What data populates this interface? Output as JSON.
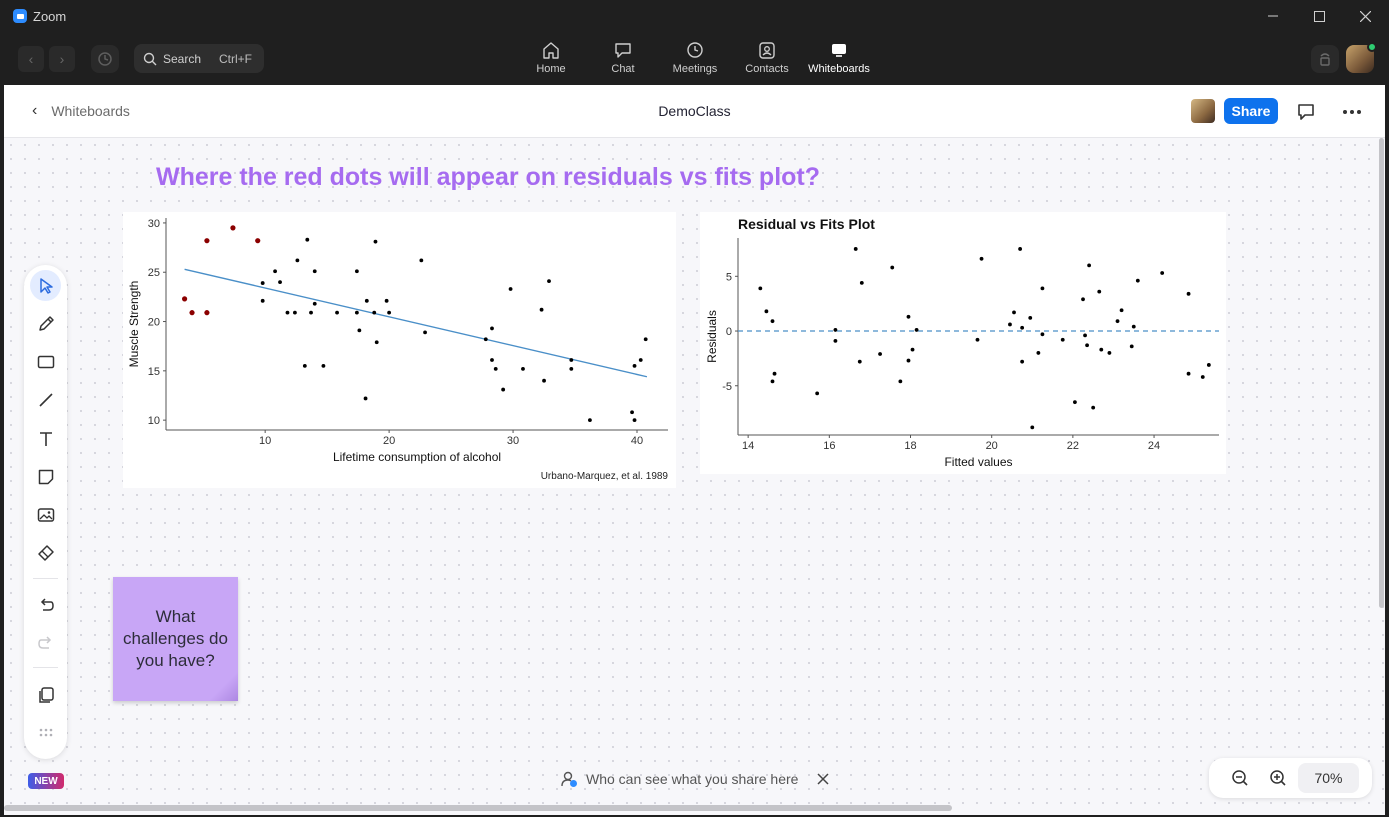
{
  "window": {
    "title": "Zoom"
  },
  "nav": {
    "search_placeholder": "Search",
    "search_shortcut": "Ctrl+F",
    "tabs": [
      {
        "label": "Home",
        "icon": "home-icon"
      },
      {
        "label": "Chat",
        "icon": "chat-icon"
      },
      {
        "label": "Meetings",
        "icon": "clock-icon"
      },
      {
        "label": "Contacts",
        "icon": "contacts-icon"
      },
      {
        "label": "Whiteboards",
        "icon": "whiteboard-icon",
        "active": true
      }
    ]
  },
  "header": {
    "back_label": "Whiteboards",
    "board_title": "DemoClass",
    "share_label": "Share"
  },
  "canvas": {
    "headline": "Where the red dots will appear on residuals vs fits plot?",
    "sticky_note": "What challenges do you have?",
    "sticky_color": "#c8a6f6",
    "headline_color": "#a66bf0"
  },
  "toolbar": {
    "tools": [
      "select-icon",
      "pen-icon",
      "rectangle-icon",
      "line-icon",
      "text-icon",
      "sticky-note-icon",
      "image-icon",
      "eraser-icon",
      "undo-icon",
      "redo-icon",
      "templates-icon",
      "more-icon"
    ],
    "new_badge": "NEW"
  },
  "footer": {
    "visibility_tip": "Who can see what you share here",
    "zoom_level": "70%"
  },
  "chart_data": [
    {
      "type": "scatter",
      "title": "",
      "xlabel": "Lifetime consumption of alcohol",
      "ylabel": "Muscle Strength",
      "caption": "Urbano-Marquez, et al. 1989",
      "xlim": [
        2,
        42.5
      ],
      "ylim": [
        9,
        30.5
      ],
      "xticks": [
        10,
        20,
        30,
        40
      ],
      "yticks": [
        10,
        15,
        20,
        25,
        30
      ],
      "fit_line": {
        "x": [
          3.5,
          40.8
        ],
        "y": [
          25.3,
          14.4
        ],
        "color": "#4a8fc8"
      },
      "series": [
        {
          "color": "#000000",
          "points": [
            [
              9.8,
              23.9
            ],
            [
              9.8,
              22.1
            ],
            [
              10.8,
              25.1
            ],
            [
              11.2,
              24
            ],
            [
              11.8,
              20.9
            ],
            [
              12.4,
              20.9
            ],
            [
              12.6,
              26.2
            ],
            [
              13.2,
              15.5
            ],
            [
              13.4,
              28.3
            ],
            [
              13.7,
              20.9
            ],
            [
              14,
              25.1
            ],
            [
              14,
              21.8
            ],
            [
              14.7,
              15.5
            ],
            [
              15.8,
              20.9
            ],
            [
              17.4,
              25.1
            ],
            [
              17.4,
              20.9
            ],
            [
              17.6,
              19.1
            ],
            [
              18.1,
              12.2
            ],
            [
              18.2,
              22.1
            ],
            [
              18.8,
              20.9
            ],
            [
              18.9,
              28.1
            ],
            [
              19,
              17.9
            ],
            [
              19.8,
              22.1
            ],
            [
              20,
              20.9
            ],
            [
              22.6,
              26.2
            ],
            [
              22.9,
              18.9
            ],
            [
              27.8,
              18.2
            ],
            [
              28.3,
              19.3
            ],
            [
              28.3,
              16.1
            ],
            [
              28.6,
              15.2
            ],
            [
              29.2,
              13.1
            ],
            [
              29.8,
              23.3
            ],
            [
              30.8,
              15.2
            ],
            [
              32.3,
              21.2
            ],
            [
              32.5,
              14
            ],
            [
              32.9,
              24.1
            ],
            [
              34.7,
              16.1
            ],
            [
              34.7,
              15.2
            ],
            [
              36.2,
              10
            ],
            [
              39.6,
              10.8
            ],
            [
              39.8,
              15.5
            ],
            [
              39.8,
              10
            ],
            [
              40.3,
              16.1
            ],
            [
              40.7,
              18.2
            ]
          ]
        },
        {
          "color": "#8b0000",
          "points": [
            [
              3.5,
              22.3
            ],
            [
              4.1,
              20.9
            ],
            [
              5.3,
              28.2
            ],
            [
              5.3,
              20.9
            ],
            [
              7.4,
              29.5
            ],
            [
              9.4,
              28.2
            ]
          ]
        }
      ]
    },
    {
      "type": "scatter",
      "title": "Residual vs Fits Plot",
      "xlabel": "Fitted values",
      "ylabel": "Residuals",
      "xlim": [
        13.75,
        25.6
      ],
      "ylim": [
        -9.5,
        8.5
      ],
      "xticks": [
        14,
        16,
        18,
        20,
        22,
        24
      ],
      "yticks": [
        -5,
        0,
        5
      ],
      "reference_line": {
        "y": 0,
        "style": "dashed",
        "color": "#4a8fc8"
      },
      "series": [
        {
          "color": "#000000",
          "points": [
            [
              14.3,
              3.9
            ],
            [
              14.45,
              1.8
            ],
            [
              14.6,
              0.9
            ],
            [
              14.6,
              -4.6
            ],
            [
              14.65,
              -3.9
            ],
            [
              15.7,
              -5.7
            ],
            [
              16.15,
              0.1
            ],
            [
              16.15,
              -0.9
            ],
            [
              16.65,
              7.5
            ],
            [
              16.75,
              -2.8
            ],
            [
              16.8,
              4.4
            ],
            [
              17.25,
              -2.1
            ],
            [
              17.55,
              5.8
            ],
            [
              17.75,
              -4.6
            ],
            [
              17.95,
              -2.7
            ],
            [
              17.95,
              1.3
            ],
            [
              18.05,
              -1.7
            ],
            [
              18.15,
              0.1
            ],
            [
              19.65,
              -0.8
            ],
            [
              19.75,
              6.6
            ],
            [
              20.45,
              0.6
            ],
            [
              20.55,
              1.7
            ],
            [
              20.7,
              7.5
            ],
            [
              20.75,
              -2.8
            ],
            [
              20.75,
              0.3
            ],
            [
              20.95,
              1.2
            ],
            [
              21.0,
              -8.8
            ],
            [
              21.15,
              -2.0
            ],
            [
              21.25,
              3.9
            ],
            [
              21.25,
              -0.3
            ],
            [
              21.75,
              -0.8
            ],
            [
              22.05,
              -6.5
            ],
            [
              22.25,
              2.9
            ],
            [
              22.3,
              -0.4
            ],
            [
              22.35,
              -1.3
            ],
            [
              22.4,
              6.0
            ],
            [
              22.5,
              -7.0
            ],
            [
              22.65,
              3.6
            ],
            [
              22.7,
              -1.7
            ],
            [
              22.9,
              -2.0
            ],
            [
              23.1,
              0.9
            ],
            [
              23.2,
              1.9
            ],
            [
              23.45,
              -1.4
            ],
            [
              23.5,
              0.4
            ],
            [
              23.6,
              4.6
            ],
            [
              24.2,
              5.3
            ],
            [
              24.85,
              3.4
            ],
            [
              24.85,
              -3.9
            ],
            [
              25.2,
              -4.2
            ],
            [
              25.35,
              -3.1
            ]
          ]
        }
      ]
    }
  ]
}
